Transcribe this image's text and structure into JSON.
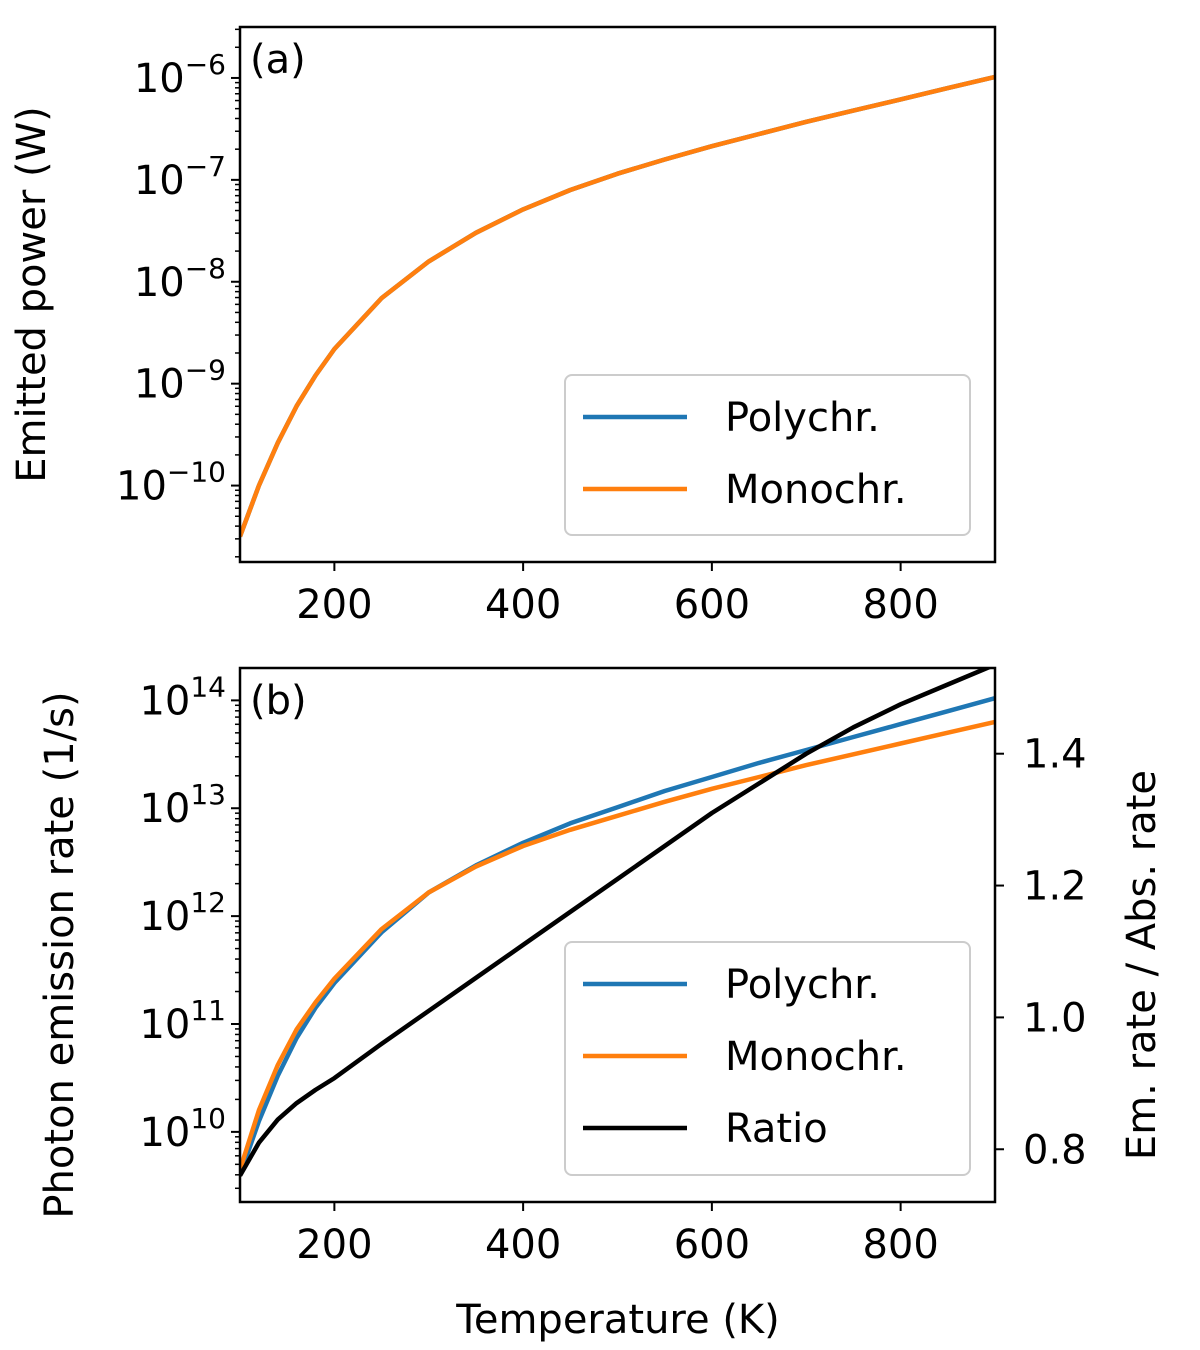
{
  "figure": {
    "xlabel": "Temperature (K)",
    "colors": {
      "polychr": "#1f77b4",
      "monochr": "#ff7f0e",
      "ratio": "#000000"
    }
  },
  "chart_data": [
    {
      "type": "line",
      "panel_label": "(a)",
      "title": "",
      "xlabel": "",
      "ylabel": "Emitted power (W)",
      "yscale": "log",
      "xlim": [
        100,
        900
      ],
      "ylim_log10": [
        -10.75,
        -5.5
      ],
      "x_ticks": [
        200,
        400,
        600,
        800
      ],
      "y_ticks_log10": [
        -10,
        -9,
        -8,
        -7,
        -6
      ],
      "y_tick_labels": [
        {
          "base": "10",
          "exp": "−10"
        },
        {
          "base": "10",
          "exp": "−9"
        },
        {
          "base": "10",
          "exp": "−8"
        },
        {
          "base": "10",
          "exp": "−7"
        },
        {
          "base": "10",
          "exp": "−6"
        }
      ],
      "x": [
        100,
        120,
        140,
        160,
        180,
        200,
        250,
        300,
        350,
        400,
        450,
        500,
        550,
        600,
        650,
        700,
        750,
        800,
        850,
        900
      ],
      "series": [
        {
          "name": "Polychr.",
          "color": "#1f77b4",
          "log10_values": [
            -10.5,
            -10.0,
            -9.58,
            -9.22,
            -8.92,
            -8.66,
            -8.16,
            -7.8,
            -7.52,
            -7.29,
            -7.1,
            -6.94,
            -6.8,
            -6.67,
            -6.55,
            -6.43,
            -6.32,
            -6.21,
            -6.1,
            -5.99
          ]
        },
        {
          "name": "Monochr.",
          "color": "#ff7f0e",
          "log10_values": [
            -10.5,
            -10.0,
            -9.58,
            -9.22,
            -8.92,
            -8.66,
            -8.16,
            -7.8,
            -7.52,
            -7.29,
            -7.1,
            -6.94,
            -6.8,
            -6.67,
            -6.55,
            -6.43,
            -6.32,
            -6.21,
            -6.1,
            -5.99
          ]
        }
      ],
      "legend": {
        "location": "lower-right",
        "entries": [
          "Polychr.",
          "Monochr."
        ]
      }
    },
    {
      "type": "line",
      "panel_label": "(b)",
      "title": "",
      "xlabel": "Temperature (K)",
      "ylabel": "Photon emission rate (1/s)",
      "y2label": "Em. rate / Abs. rate",
      "yscale": "log",
      "xlim": [
        100,
        900
      ],
      "ylim_log10": [
        9.35,
        14.3
      ],
      "y2lim": [
        0.72,
        1.53
      ],
      "x_ticks": [
        200,
        400,
        600,
        800
      ],
      "y_ticks_log10": [
        10,
        11,
        12,
        13,
        14
      ],
      "y_tick_labels": [
        {
          "base": "10",
          "exp": "10"
        },
        {
          "base": "10",
          "exp": "11"
        },
        {
          "base": "10",
          "exp": "12"
        },
        {
          "base": "10",
          "exp": "13"
        },
        {
          "base": "10",
          "exp": "14"
        }
      ],
      "y2_ticks": [
        0.8,
        1.0,
        1.2,
        1.4
      ],
      "y2_tick_labels": [
        "0.8",
        "1.0",
        "1.2",
        "1.4"
      ],
      "x": [
        100,
        120,
        140,
        160,
        180,
        200,
        250,
        300,
        350,
        400,
        450,
        500,
        550,
        600,
        650,
        700,
        750,
        800,
        850,
        900
      ],
      "series": [
        {
          "name": "Polychr.",
          "axis": "left",
          "color": "#1f77b4",
          "log10_values": [
            9.6,
            10.1,
            10.52,
            10.87,
            11.15,
            11.38,
            11.85,
            12.22,
            12.47,
            12.68,
            12.86,
            13.01,
            13.16,
            13.29,
            13.42,
            13.54,
            13.66,
            13.78,
            13.9,
            14.02
          ]
        },
        {
          "name": "Monochr.",
          "axis": "left",
          "color": "#ff7f0e",
          "log10_values": [
            9.65,
            10.2,
            10.62,
            10.95,
            11.2,
            11.42,
            11.88,
            12.22,
            12.46,
            12.65,
            12.8,
            12.93,
            13.06,
            13.18,
            13.29,
            13.4,
            13.5,
            13.6,
            13.7,
            13.8
          ]
        },
        {
          "name": "Ratio",
          "axis": "right",
          "color": "#000000",
          "values": [
            0.76,
            0.81,
            0.845,
            0.87,
            0.89,
            0.908,
            0.96,
            1.01,
            1.06,
            1.11,
            1.16,
            1.21,
            1.26,
            1.31,
            1.355,
            1.4,
            1.44,
            1.475,
            1.505,
            1.535
          ]
        }
      ],
      "legend": {
        "location": "lower-right",
        "entries": [
          "Polychr.",
          "Monochr.",
          "Ratio"
        ]
      }
    }
  ]
}
